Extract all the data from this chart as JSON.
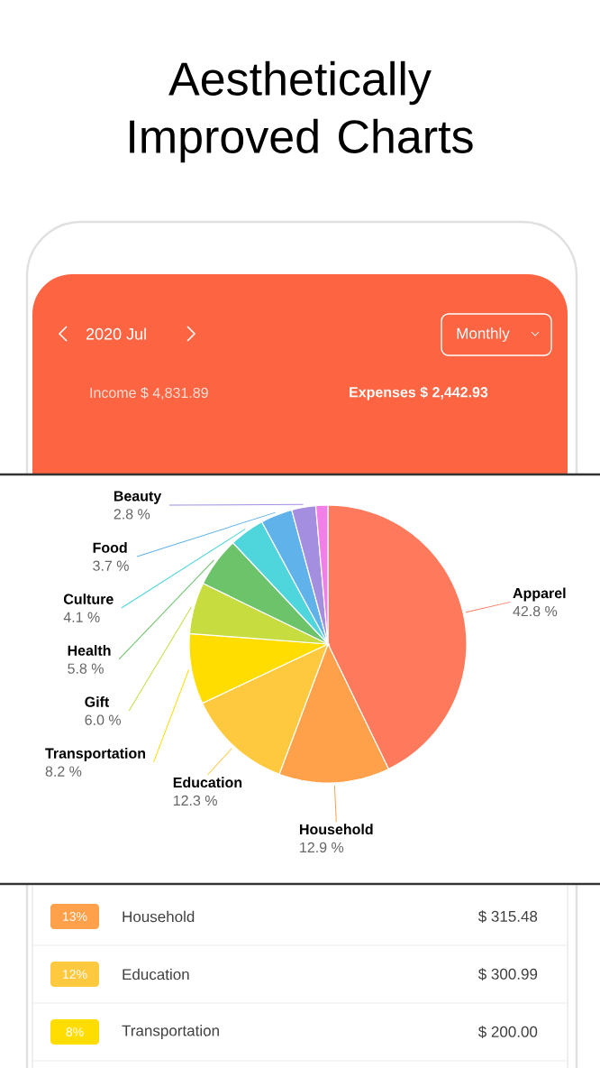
{
  "chart_data": {
    "type": "pie",
    "title": "Aesthetically Improved Charts",
    "categories": [
      "Apparel",
      "Household",
      "Education",
      "Transportation",
      "Gift",
      "Health",
      "Culture",
      "Food",
      "Beauty",
      null
    ],
    "values": [
      42.8,
      12.9,
      12.3,
      8.2,
      6.0,
      5.8,
      4.1,
      3.7,
      2.8,
      1.4
    ],
    "value_labels": [
      "42.8 %",
      "12.9 %",
      "12.3 %",
      "8.2 %",
      "6.0 %",
      "5.8 %",
      "4.1 %",
      "3.7 %",
      "2.8 %",
      null
    ],
    "colors": [
      "#ff7a5c",
      "#ffa04a",
      "#ffc93f",
      "#ffdd00",
      "#c6dc3f",
      "#6cc36a",
      "#4fd6dc",
      "#5fb2ea",
      "#a38ee0",
      "#f27ee8"
    ],
    "annotations": [
      "2020 Jul",
      "Monthly",
      "Income",
      "$ 4,831.89",
      "Expenses",
      "$ 2,442.93",
      "13%",
      "Household",
      "$ 315.48",
      "12%",
      "Education",
      "$ 300.99",
      "8%",
      "Transportation",
      "$ 200.00"
    ]
  }
}
